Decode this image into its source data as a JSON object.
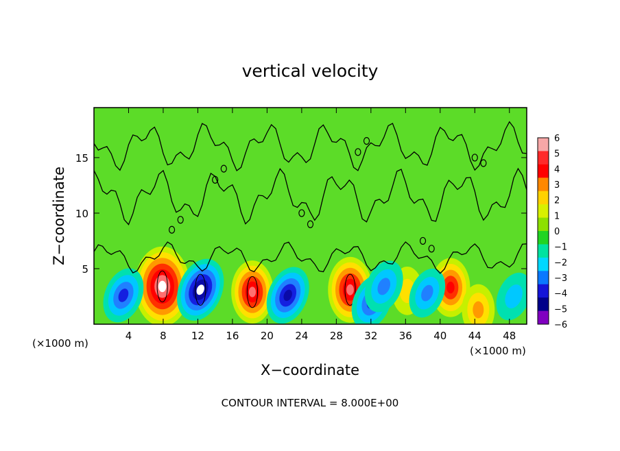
{
  "chart_data": {
    "type": "heatmap",
    "title": "vertical velocity",
    "xlabel": "X−coordinate",
    "ylabel": "Z−coordinate",
    "x_unit_left": "(×1000 m)",
    "x_unit_right": "(×1000 m)",
    "footer": "CONTOUR INTERVAL = 8.000E+00",
    "xlim": [
      0,
      50
    ],
    "ylim": [
      0,
      19.5
    ],
    "x_ticks": [
      "4",
      "8",
      "12",
      "16",
      "20",
      "24",
      "28",
      "32",
      "36",
      "40",
      "44",
      "48"
    ],
    "x_tick_values": [
      4,
      8,
      12,
      16,
      20,
      24,
      28,
      32,
      36,
      40,
      44,
      48
    ],
    "y_ticks": [
      "5",
      "10",
      "15"
    ],
    "y_tick_values": [
      5,
      10,
      15
    ],
    "colorbar": {
      "labels": [
        "6",
        "5",
        "4",
        "3",
        "2",
        "1",
        "0",
        "−1",
        "−2",
        "−3",
        "−4",
        "−5",
        "−6"
      ],
      "colors": [
        "#f7a7a7",
        "#ff2a2a",
        "#ff0000",
        "#ff8800",
        "#ffd200",
        "#d8f000",
        "#8de000",
        "#22d422",
        "#00e3a0",
        "#00d8ff",
        "#0a78ff",
        "#1414d8",
        "#00008a",
        "#8000c0"
      ]
    },
    "background_color": "#5cdc28",
    "features": [
      {
        "sign": "up",
        "x": 7.9,
        "z": 3.4,
        "peak": 30
      },
      {
        "sign": "up",
        "x": 18.3,
        "z": 2.9,
        "peak": 14
      },
      {
        "sign": "up",
        "x": 29.6,
        "z": 3.1,
        "peak": 16
      },
      {
        "sign": "up",
        "x": 41.2,
        "z": 3.3,
        "peak": 11
      },
      {
        "sign": "up",
        "x": 44.4,
        "z": 1.3,
        "peak": 5
      },
      {
        "sign": "up",
        "x": 36.2,
        "z": 3.0,
        "peak": 3
      },
      {
        "sign": "down",
        "x": 3.4,
        "z": 2.6,
        "peak": -9
      },
      {
        "sign": "down",
        "x": 12.3,
        "z": 3.1,
        "peak": -15
      },
      {
        "sign": "down",
        "x": 22.4,
        "z": 2.6,
        "peak": -11
      },
      {
        "sign": "down",
        "x": 32.1,
        "z": 2.0,
        "peak": -9
      },
      {
        "sign": "down",
        "x": 33.5,
        "z": 3.4,
        "peak": -7
      },
      {
        "sign": "down",
        "x": 38.5,
        "z": 2.8,
        "peak": -5
      },
      {
        "sign": "down",
        "x": 48.5,
        "z": 2.5,
        "peak": -4
      }
    ]
  }
}
